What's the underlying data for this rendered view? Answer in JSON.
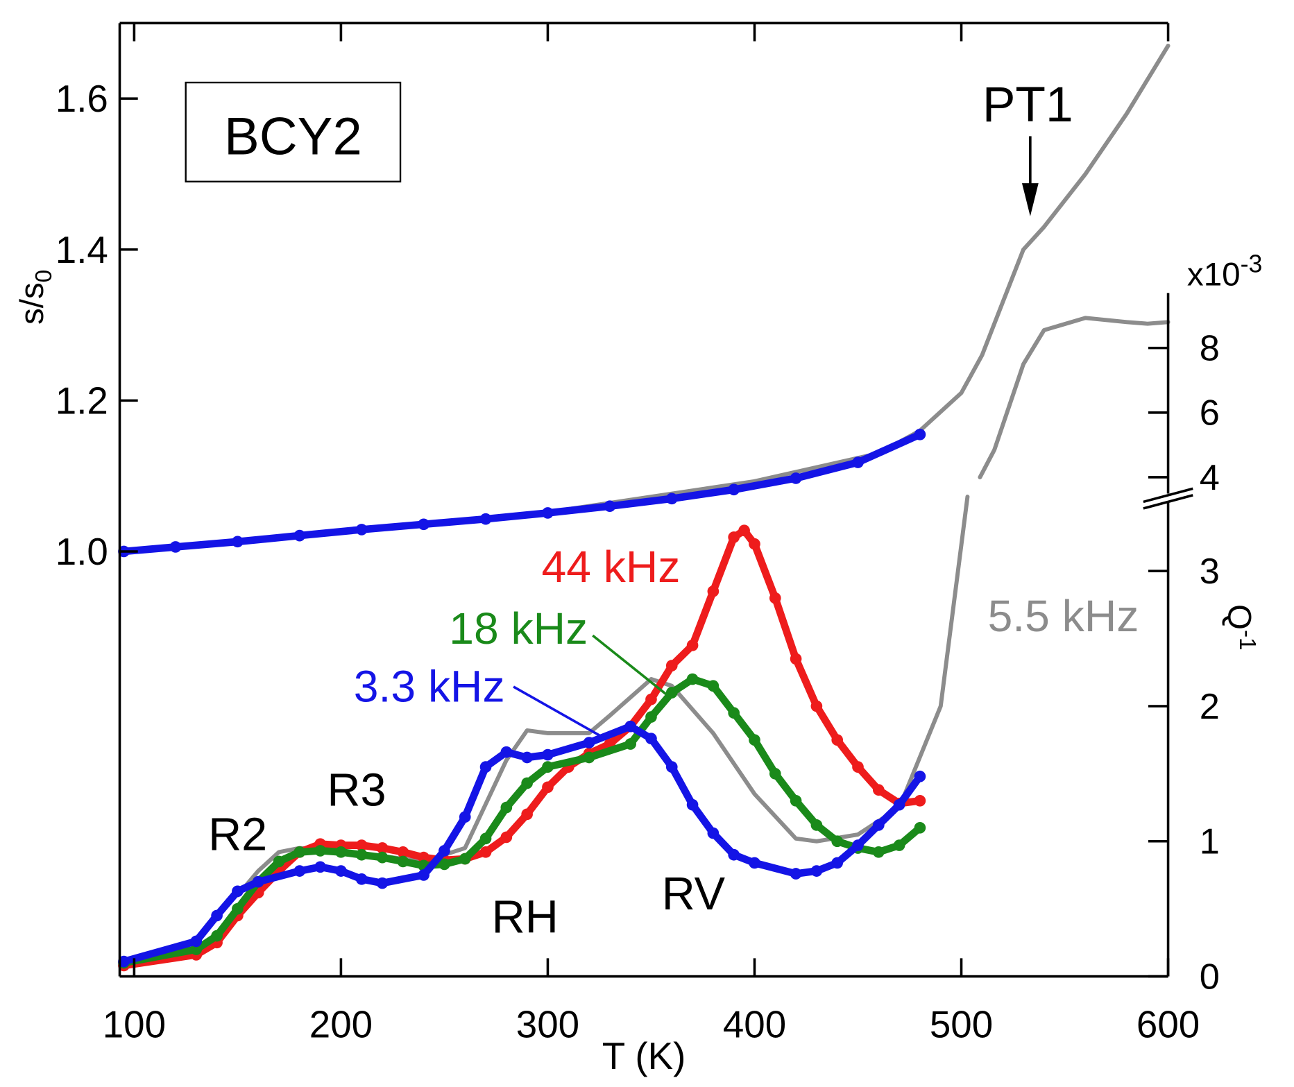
{
  "chart_data": {
    "type": "line",
    "xlabel": "T (K)",
    "ylabel": {
      "text": "s/s",
      "sub": "0"
    },
    "y2label": {
      "text": "Q",
      "sup": "-1"
    },
    "y2unit": {
      "text": "x10",
      "sup": "-3"
    },
    "xlim": [
      93,
      600
    ],
    "xticks": [
      100,
      200,
      300,
      400,
      500,
      600
    ],
    "ylim": [
      0.437,
      1.7
    ],
    "yticks": [
      {
        "value": 1.0,
        "label": "1.0"
      },
      1.2,
      1.4,
      1.6
    ],
    "y2lim": [
      0,
      9.7
    ],
    "y2break": [
      3.5,
      3.75
    ],
    "y2ticks": [
      0,
      1,
      2,
      3,
      4,
      6,
      8
    ],
    "annotations": {
      "sample": "BCY2",
      "transition": "PT1",
      "peaks": [
        "R2",
        "R3",
        "RH",
        "RV"
      ]
    },
    "series": [
      {
        "name": "44 kHz",
        "color": "#ee1c1c",
        "axis": "y2",
        "marker": true,
        "x": [
          95,
          130,
          140,
          150,
          160,
          170,
          180,
          190,
          200,
          210,
          220,
          230,
          240,
          250,
          260,
          270,
          280,
          290,
          300,
          310,
          320,
          330,
          340,
          350,
          360,
          370,
          380,
          390,
          395,
          400,
          410,
          420,
          430,
          440,
          450,
          460,
          470,
          480
        ],
        "values": [
          0.08,
          0.16,
          0.25,
          0.45,
          0.62,
          0.78,
          0.92,
          0.98,
          0.97,
          0.97,
          0.95,
          0.92,
          0.88,
          0.86,
          0.87,
          0.92,
          1.03,
          1.2,
          1.4,
          1.55,
          1.65,
          1.72,
          1.85,
          2.05,
          2.3,
          2.45,
          2.85,
          3.25,
          3.3,
          3.2,
          2.8,
          2.35,
          2.0,
          1.75,
          1.55,
          1.38,
          1.28,
          1.3
        ]
      },
      {
        "name": "18 kHz",
        "color": "#1a8a1a",
        "axis": "y2",
        "marker": true,
        "x": [
          95,
          130,
          140,
          150,
          160,
          170,
          180,
          190,
          200,
          210,
          220,
          230,
          240,
          250,
          260,
          270,
          280,
          290,
          300,
          320,
          340,
          350,
          360,
          370,
          380,
          390,
          400,
          410,
          420,
          430,
          440,
          450,
          460,
          470,
          480
        ],
        "values": [
          0.1,
          0.2,
          0.3,
          0.5,
          0.7,
          0.85,
          0.92,
          0.93,
          0.92,
          0.9,
          0.88,
          0.85,
          0.82,
          0.83,
          0.87,
          1.02,
          1.25,
          1.43,
          1.55,
          1.62,
          1.72,
          1.92,
          2.1,
          2.2,
          2.15,
          1.95,
          1.75,
          1.5,
          1.3,
          1.12,
          1.0,
          0.95,
          0.92,
          0.97,
          1.1
        ]
      },
      {
        "name": "3.3 kHz",
        "color": "#1414e6",
        "axis": "y2",
        "marker": true,
        "x": [
          95,
          130,
          140,
          150,
          160,
          180,
          190,
          200,
          210,
          220,
          240,
          250,
          260,
          270,
          280,
          290,
          300,
          320,
          340,
          350,
          360,
          370,
          380,
          390,
          400,
          420,
          430,
          440,
          450,
          460,
          470,
          480
        ],
        "values": [
          0.11,
          0.26,
          0.45,
          0.63,
          0.7,
          0.78,
          0.81,
          0.78,
          0.72,
          0.69,
          0.75,
          0.93,
          1.18,
          1.55,
          1.66,
          1.62,
          1.64,
          1.73,
          1.85,
          1.76,
          1.55,
          1.27,
          1.06,
          0.9,
          0.84,
          0.76,
          0.78,
          0.84,
          0.97,
          1.12,
          1.27,
          1.48
        ]
      },
      {
        "name": "5.5 kHz",
        "color": "#8c8c8c",
        "axis": "y2",
        "marker": false,
        "x": [
          150,
          160,
          170,
          180,
          200,
          240,
          260,
          280,
          290,
          300,
          320,
          330,
          350,
          360,
          380,
          400,
          420,
          430,
          450,
          470,
          490,
          503,
          506,
          509,
          516,
          530,
          540,
          560,
          580,
          590,
          600
        ],
        "values": [
          0.6,
          0.78,
          0.92,
          0.95,
          0.93,
          0.85,
          0.95,
          1.6,
          1.82,
          1.8,
          1.8,
          1.93,
          2.2,
          2.15,
          1.8,
          1.35,
          1.02,
          1.0,
          1.05,
          1.25,
          2.0,
          3.55,
          null,
          4.0,
          4.85,
          7.5,
          8.55,
          8.93,
          8.8,
          8.75,
          8.8
        ]
      },
      {
        "color": "#8c8c8c",
        "axis": "y",
        "marker": false,
        "x": [
          95,
          200,
          300,
          400,
          460,
          480,
          500,
          510,
          520,
          530,
          540,
          560,
          580,
          600
        ],
        "values": [
          1.0,
          1.025,
          1.052,
          1.093,
          1.13,
          1.16,
          1.21,
          1.26,
          1.33,
          1.4,
          1.43,
          1.5,
          1.58,
          1.67
        ]
      },
      {
        "color": "#1414e6",
        "axis": "y",
        "marker": true,
        "x": [
          95,
          120,
          150,
          180,
          210,
          240,
          270,
          300,
          330,
          360,
          390,
          420,
          450,
          480
        ],
        "values": [
          1.0,
          1.006,
          1.013,
          1.021,
          1.029,
          1.036,
          1.043,
          1.051,
          1.06,
          1.07,
          1.082,
          1.097,
          1.118,
          1.155
        ]
      }
    ]
  }
}
